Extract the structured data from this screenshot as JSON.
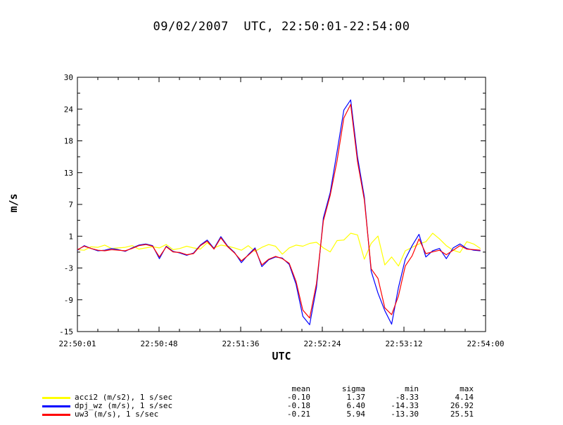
{
  "chart_data": {
    "type": "line",
    "title": "09/02/2007  UTC, 22:50:01-22:54:00",
    "xlabel": "UTC",
    "ylabel": "m/s",
    "x_start_seconds": 0,
    "x_end_seconds": 239,
    "xlim": [
      "22:50:01",
      "22:54:00"
    ],
    "ylim": [
      -15,
      30
    ],
    "x_ticks": [
      "22:50:01",
      "22:50:48",
      "22:51:36",
      "22:52:24",
      "22:53:12",
      "22:54:00"
    ],
    "y_ticks": [
      "30",
      "24",
      "18",
      "13",
      "7",
      "1",
      "-3",
      "-9",
      "-15"
    ],
    "grid": false,
    "series": [
      {
        "name": "acci2 (m/s2), 1 s/sec",
        "color": "#ffff00",
        "sample_seconds": 4,
        "values": [
          -0.5,
          -0.6,
          0,
          -0.1,
          0.3,
          -0.3,
          -0.2,
          -0.1,
          0.2,
          -0.4,
          -0.2,
          0,
          -0.2,
          0.4,
          -0.5,
          -0.3,
          0.1,
          -0.2,
          -0.4,
          0.7,
          -0.2,
          0.3,
          0.1,
          -0.2,
          -0.6,
          0.2,
          -0.8,
          -0.1,
          0.4,
          0.1,
          -1.3,
          -0.2,
          0.3,
          0.1,
          0.6,
          0.8,
          -0.2,
          -0.9,
          1.1,
          1.2,
          2.4,
          2.1,
          -2.2,
          0.6,
          1.9,
          -3.2,
          -1.8,
          -3.4,
          -0.7,
          -0.1,
          0.5,
          0.9,
          2.4,
          1.4,
          0.2,
          -0.6,
          -1.0,
          0.9,
          0.5,
          -0.3
        ]
      },
      {
        "name": "dpj_wz (m/s), 1 s/sec",
        "color": "#0000ff",
        "sample_seconds": 4,
        "values": [
          -0.6,
          0.2,
          -0.3,
          -0.7,
          -0.6,
          -0.3,
          -0.5,
          -0.8,
          -0.2,
          0.3,
          0.5,
          0.2,
          -2.1,
          0.1,
          -0.8,
          -1.1,
          -1.5,
          -1.1,
          0.3,
          1.2,
          -0.3,
          1.8,
          0.1,
          -1.0,
          -2.8,
          -1.4,
          -0.2,
          -3.5,
          -2.3,
          -1.8,
          -2.0,
          -3.1,
          -6.6,
          -12.3,
          -13.8,
          -7.2,
          5.1,
          9.6,
          16.8,
          24.2,
          26.0,
          15.9,
          8.8,
          -4.3,
          -8.2,
          -11.3,
          -13.7,
          -7.2,
          -2.2,
          0.2,
          2.2,
          -1.8,
          -0.7,
          -0.3,
          -2.1,
          -0.2,
          0.5,
          -0.3,
          -0.6,
          -0.7
        ]
      },
      {
        "name": "uw3 (m/s), 1 s/sec",
        "color": "#ff0000",
        "sample_seconds": 4,
        "values": [
          -0.5,
          0.1,
          -0.3,
          -0.6,
          -0.7,
          -0.5,
          -0.6,
          -0.7,
          -0.3,
          0.2,
          0.4,
          0.1,
          -1.8,
          0.0,
          -0.9,
          -1.0,
          -1.4,
          -1.2,
          0.2,
          1.0,
          -0.4,
          1.6,
          0.0,
          -1.1,
          -2.5,
          -1.5,
          -0.4,
          -3.2,
          -2.2,
          -1.7,
          -2.1,
          -2.9,
          -6.1,
          -11.2,
          -12.6,
          -6.5,
          4.6,
          9.1,
          15.2,
          22.8,
          25.2,
          15.1,
          8.3,
          -3.9,
          -5.6,
          -10.8,
          -12.0,
          -8.7,
          -3.4,
          -1.6,
          1.4,
          -1.2,
          -0.9,
          -0.6,
          -1.4,
          -0.6,
          0.2,
          -0.4,
          -0.5,
          -0.6
        ]
      }
    ],
    "stats": {
      "headers": [
        "mean",
        "sigma",
        "min",
        "max"
      ],
      "rows": [
        {
          "name": "acci2 (m/s2), 1 s/sec",
          "color": "#ffff00",
          "mean": "-0.10",
          "sigma": "1.37",
          "min": "-8.33",
          "max": "4.14"
        },
        {
          "name": "dpj_wz (m/s), 1 s/sec",
          "color": "#0000ff",
          "mean": "-0.18",
          "sigma": "6.40",
          "min": "-14.33",
          "max": "26.92"
        },
        {
          "name": "uw3 (m/s), 1 s/sec",
          "color": "#ff0000",
          "mean": "-0.21",
          "sigma": "5.94",
          "min": "-13.30",
          "max": "25.51"
        }
      ]
    }
  }
}
